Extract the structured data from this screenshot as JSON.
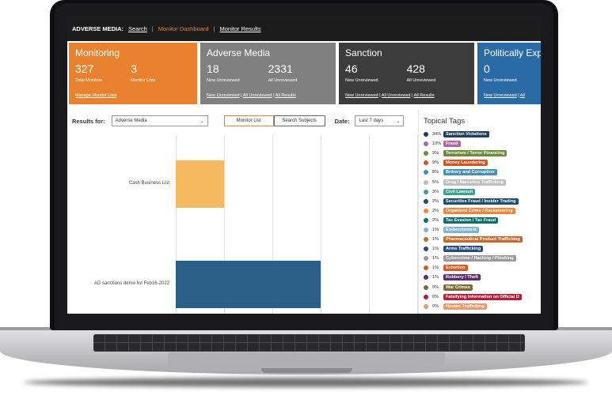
{
  "nav": {
    "brand": "ADVERSE MEDIA:",
    "links": [
      {
        "label": "Search",
        "active": false
      },
      {
        "label": "Monitor Dashboard",
        "active": true
      },
      {
        "label": "Monitor Results",
        "active": false
      }
    ],
    "separator": "|"
  },
  "cards": {
    "monitoring": {
      "title": "Monitoring",
      "v1": "327",
      "l1": "Total Monitors",
      "v2": "3",
      "l2": "Monitor Lists",
      "link": "Manage Monitor Lists",
      "color": "#e8822f"
    },
    "adverse_media": {
      "title": "Adverse Media",
      "v1": "18",
      "l1": "New Unreviewed",
      "v2": "2331",
      "l2": "All Unreviewed",
      "links": [
        "New Unreviewed",
        "All Unreviewed",
        "All Results"
      ],
      "color": "#808080"
    },
    "sanction": {
      "title": "Sanction",
      "v1": "46",
      "l1": "New Unreviewed",
      "v2": "428",
      "l2": "All Unreviewed",
      "links": [
        "New Unreviewed",
        "All Unreviewed",
        "All Results"
      ],
      "color": "#3c3c3c"
    },
    "pep": {
      "title": "Politically Expo",
      "v1": "0",
      "l1": "New Unreviewed",
      "links": [
        "New Unreviewed",
        "All"
      ],
      "color": "#2a6aa5"
    }
  },
  "filters": {
    "results_for_label": "Results for:",
    "results_for_value": "Adverse Media",
    "monitor_list_btn": "Monitor List",
    "search_subjects_btn": "Search Subjects",
    "date_label": "Date:",
    "date_value": "Last 7 days"
  },
  "chart_data": {
    "type": "bar",
    "orientation": "horizontal",
    "categories": [
      "Cash Business List",
      "AD sanctions demo list Feb16-2022"
    ],
    "values": [
      1,
      3
    ],
    "bar_colors": [
      "#f5b95f",
      "#2b5f87"
    ],
    "xlim": [
      0,
      5
    ]
  },
  "topical_tags": {
    "title": "Topical Tags",
    "items": [
      {
        "pct": "34%",
        "label": "Sanction Violations",
        "color": "#1f3f5f"
      },
      {
        "pct": "10%",
        "label": "Fraud",
        "color": "#b164a8"
      },
      {
        "pct": "9%",
        "label": "Terrorism / Terror Financing",
        "color": "#6d8a3a"
      },
      {
        "pct": "9%",
        "label": "Money Laundering",
        "color": "#d4561e"
      },
      {
        "pct": "8%",
        "label": "Bribery and Corruption",
        "color": "#4a8fb0"
      },
      {
        "pct": "5%",
        "label": "Drug / Narcotics Trafficking",
        "color": "#bdbdbd"
      },
      {
        "pct": "3%",
        "label": "Civil Lawsuit",
        "color": "#3aa38e"
      },
      {
        "pct": "2%",
        "label": "Securities Fraud / Insider Trading",
        "color": "#1d4e6e"
      },
      {
        "pct": "2%",
        "label": "Organized Crime / Racketeering",
        "color": "#f0833a"
      },
      {
        "pct": "2%",
        "label": "Tax Evasion / Tax Fraud",
        "color": "#0f6d6a"
      },
      {
        "pct": "1%",
        "label": "Embezzlement",
        "color": "#7fb3d5"
      },
      {
        "pct": "1%",
        "label": "Pharmaceutical Product Trafficking",
        "color": "#c9682a"
      },
      {
        "pct": "1%",
        "label": "Arms Trafficking",
        "color": "#244d80"
      },
      {
        "pct": "1%",
        "label": "Cybercrime / Hacking / Phishing",
        "color": "#9a9a9a"
      },
      {
        "pct": "1%",
        "label": "Extortion",
        "color": "#e0571f"
      },
      {
        "pct": "1%",
        "label": "Robbery / Theft",
        "color": "#5b2d6e"
      },
      {
        "pct": "0%",
        "label": "War Crimes",
        "color": "#7a6a3a"
      },
      {
        "pct": "0%",
        "label": "Falsifying Information on Official D",
        "color": "#b0203a"
      },
      {
        "pct": "0%",
        "label": "Human Trafficking",
        "color": "#e89a6a"
      }
    ]
  }
}
